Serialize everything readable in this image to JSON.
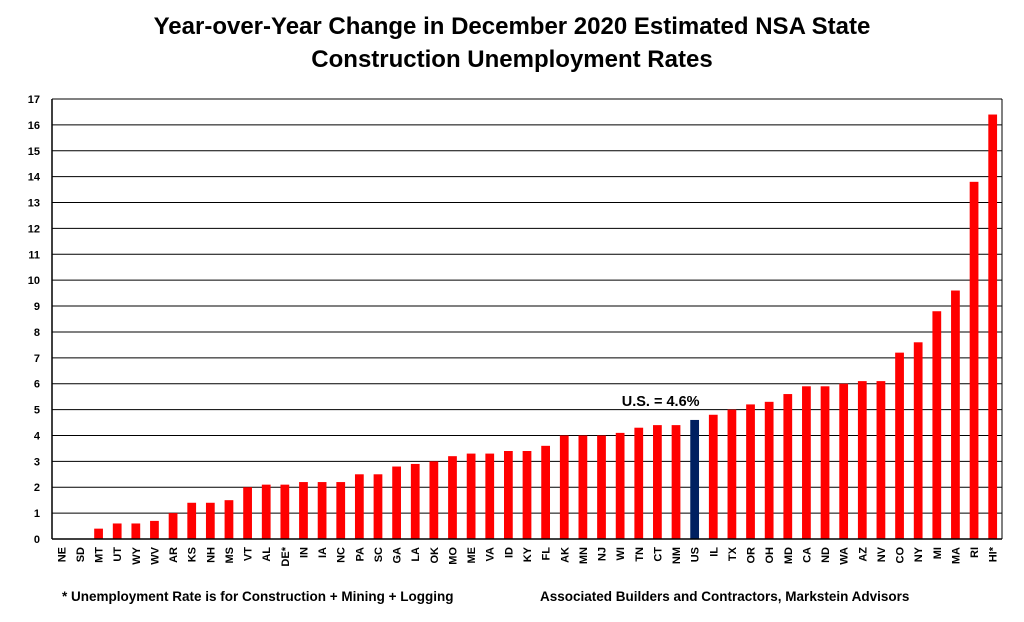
{
  "title": {
    "line1": "Year-over-Year Change in December 2020 Estimated NSA State",
    "line2": "Construction Unemployment Rates"
  },
  "footnotes": {
    "left": "* Unemployment Rate is for Construction + Mining + Logging",
    "right": "Associated Builders and Contractors, Markstein Advisors"
  },
  "colors": {
    "bar": "#ff0000",
    "highlight": "#002060",
    "grid": "#000000"
  },
  "chart_data": {
    "type": "bar",
    "title": "Year-over-Year Change in December 2020 Estimated NSA State Construction Unemployment Rates",
    "xlabel": "",
    "ylabel": "",
    "ylim": [
      0,
      17
    ],
    "yticks": [
      0,
      1,
      2,
      3,
      4,
      5,
      6,
      7,
      8,
      9,
      10,
      11,
      12,
      13,
      14,
      15,
      16,
      17
    ],
    "grid": true,
    "categories": [
      "NE",
      "SD",
      "MT",
      "UT",
      "WY",
      "WV",
      "AR",
      "KS",
      "NH",
      "MS",
      "VT",
      "AL",
      "DE*",
      "IN",
      "IA",
      "NC",
      "PA",
      "SC",
      "GA",
      "LA",
      "OK",
      "MO",
      "ME",
      "VA",
      "ID",
      "KY",
      "FL",
      "AK",
      "MN",
      "NJ",
      "WI",
      "TN",
      "CT",
      "NM",
      "US",
      "IL",
      "TX",
      "OR",
      "OH",
      "MD",
      "CA",
      "ND",
      "WA",
      "AZ",
      "NV",
      "CO",
      "NY",
      "MI",
      "MA",
      "RI",
      "HI*"
    ],
    "values": [
      0,
      0,
      0.4,
      0.6,
      0.6,
      0.7,
      1.0,
      1.4,
      1.4,
      1.5,
      2.0,
      2.1,
      2.1,
      2.2,
      2.2,
      2.2,
      2.5,
      2.5,
      2.8,
      2.9,
      3.0,
      3.2,
      3.3,
      3.3,
      3.4,
      3.4,
      3.6,
      4.0,
      4.0,
      4.0,
      4.1,
      4.3,
      4.4,
      4.4,
      4.6,
      4.8,
      5.0,
      5.2,
      5.3,
      5.6,
      5.9,
      5.9,
      6.0,
      6.1,
      6.1,
      7.2,
      7.6,
      8.8,
      9.6,
      13.8,
      16.4
    ],
    "highlight_category": "US",
    "annotation": "U.S. = 4.6%"
  }
}
